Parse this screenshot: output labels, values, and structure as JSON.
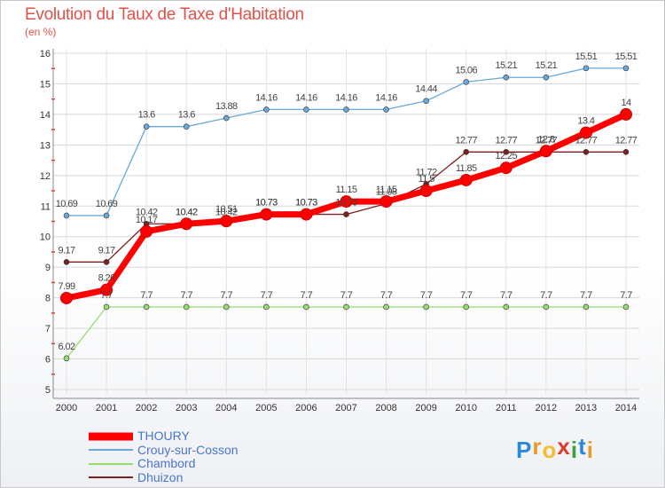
{
  "chart_data": {
    "type": "line",
    "title": "Evolution du Taux de Taxe d'Habitation",
    "subtitle": "(en %)",
    "x": [
      "2000",
      "2001",
      "2002",
      "2003",
      "2004",
      "2005",
      "2006",
      "2007",
      "2008",
      "2009",
      "2010",
      "2011",
      "2012",
      "2013",
      "2014"
    ],
    "ylim": [
      5,
      16
    ],
    "yticks": [
      "5",
      "6",
      "7",
      "8",
      "9",
      "10",
      "11",
      "12",
      "13",
      "14",
      "15",
      "16"
    ],
    "grid": true,
    "legend_position": "bottom-left",
    "series": [
      {
        "name": "THOURY",
        "color": "#ff0000",
        "values": [
          7.99,
          8.26,
          10.17,
          10.42,
          10.51,
          10.73,
          10.73,
          11.15,
          11.15,
          11.5,
          11.85,
          12.25,
          12.8,
          13.4,
          14
        ],
        "labels": [
          "7.99",
          "8.26",
          "10.17",
          "10.42",
          "10.51",
          "10.73",
          "10.73",
          "11.15",
          "11.15",
          "11.5",
          "11.85",
          "12.25",
          "12.8",
          "13.4",
          "14"
        ]
      },
      {
        "name": "Crouy-sur-Cosson",
        "color": "#6aa8d8",
        "values": [
          10.69,
          10.69,
          13.6,
          13.6,
          13.88,
          14.16,
          14.16,
          14.16,
          14.16,
          14.44,
          15.06,
          15.21,
          15.21,
          15.51,
          15.51
        ],
        "labels": [
          "10.69",
          "10.69",
          "13.6",
          "13.6",
          "13.88",
          "14.16",
          "14.16",
          "14.16",
          "14.16",
          "14.44",
          "15.06",
          "15.21",
          "15.21",
          "15.51",
          "15.51"
        ]
      },
      {
        "name": "Chambord",
        "color": "#96dc6e",
        "values": [
          6.02,
          7.7,
          7.7,
          7.7,
          7.7,
          7.7,
          7.7,
          7.7,
          7.7,
          7.7,
          7.7,
          7.7,
          7.7,
          7.7,
          7.7
        ],
        "labels": [
          "6.02",
          "7.7",
          "7.7",
          "7.7",
          "7.7",
          "7.7",
          "7.7",
          "7.7",
          "7.7",
          "7.7",
          "7.7",
          "7.7",
          "7.7",
          "7.7",
          "7.7"
        ]
      },
      {
        "name": "Dhuizon",
        "color": "#7a2020",
        "values": [
          9.17,
          9.17,
          10.42,
          10.42,
          10.42,
          10.73,
          10.73,
          10.73,
          11.08,
          11.72,
          12.77,
          12.77,
          12.77,
          12.77,
          12.77
        ],
        "labels": [
          "9.17",
          "9.17",
          "10.42",
          "10.42",
          "10.42",
          "10.73",
          "10.73",
          "10.73",
          "11.08",
          "11.72",
          "12.77",
          "12.77",
          "12.77",
          "12.77",
          "12.77"
        ]
      }
    ]
  },
  "logo": {
    "letters": [
      "P",
      "r",
      "o",
      "x",
      "i",
      "t",
      "i"
    ],
    "colors": [
      "#2a8ad8",
      "#e89a2a",
      "#f0c030",
      "#e03a2a",
      "#3aa040",
      "#2a8ad8",
      "#e89a2a"
    ]
  }
}
